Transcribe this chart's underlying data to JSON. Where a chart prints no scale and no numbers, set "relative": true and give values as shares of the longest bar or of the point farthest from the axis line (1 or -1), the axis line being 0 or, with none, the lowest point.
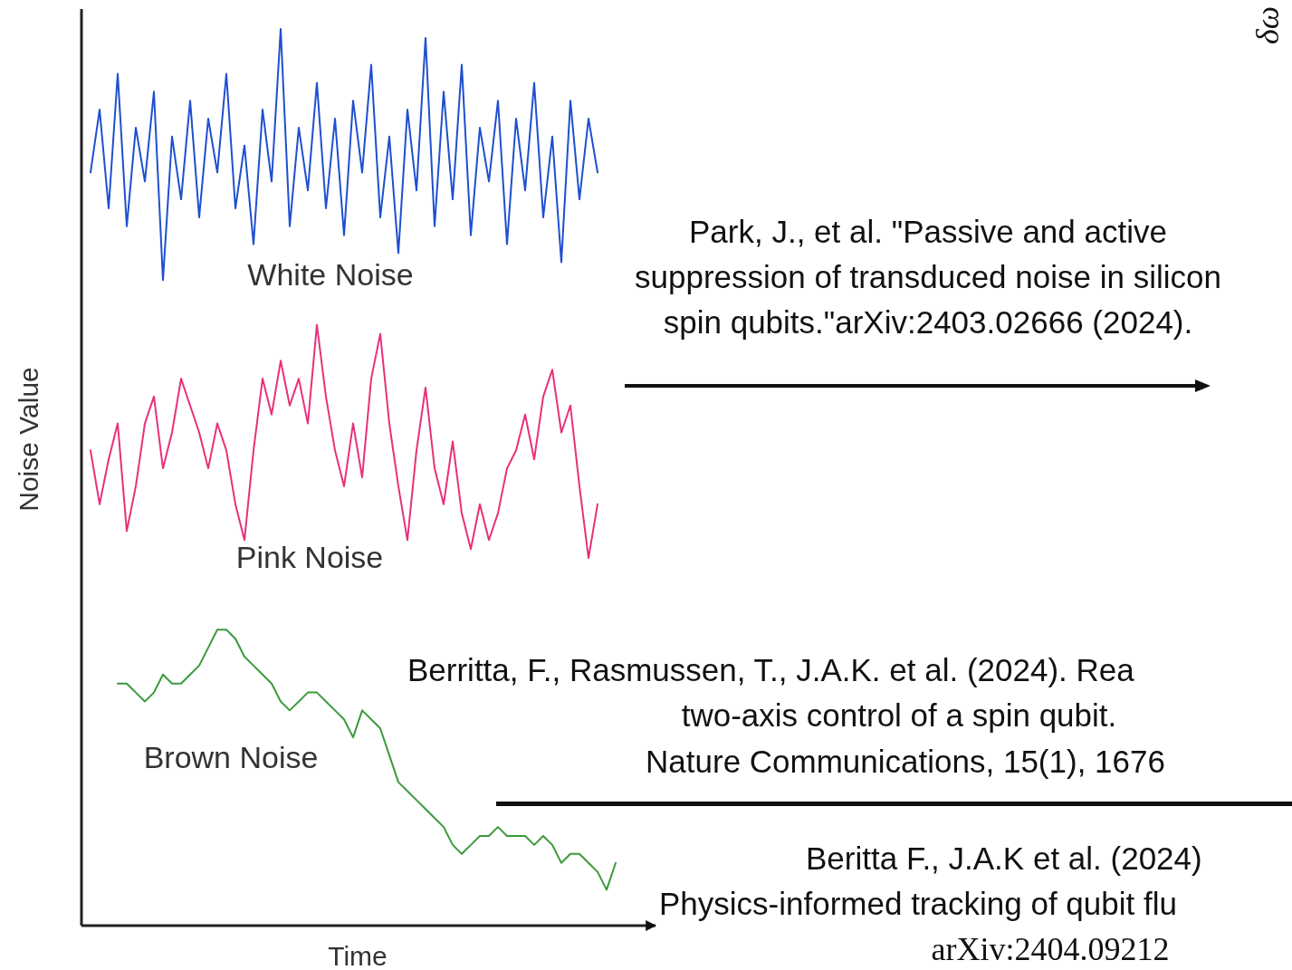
{
  "chart_data": {
    "type": "line",
    "relative": true,
    "xlabel": "Time",
    "ylabel": "Noise Value",
    "categories": [
      null,
      null,
      null,
      null,
      null,
      null,
      null,
      null,
      null,
      null,
      null,
      null,
      null,
      null,
      null,
      null,
      null,
      null,
      null,
      null,
      null,
      null,
      null,
      null,
      null,
      null,
      null,
      null,
      null,
      null,
      null,
      null,
      null,
      null,
      null,
      null,
      null,
      null,
      null,
      null,
      null,
      null,
      null,
      null,
      null,
      null,
      null,
      null,
      null,
      null,
      null,
      null,
      null,
      null,
      null,
      null,
      null,
      null,
      null
    ],
    "series": [
      {
        "name": "White Noise",
        "color": "#1f4fd0",
        "values": [
          0.84,
          0.91,
          0.8,
          0.95,
          0.78,
          0.89,
          0.83,
          0.93,
          0.72,
          0.88,
          0.81,
          0.92,
          0.79,
          0.9,
          0.84,
          0.95,
          0.8,
          0.87,
          0.76,
          0.91,
          0.83,
          1.0,
          0.78,
          0.89,
          0.82,
          0.94,
          0.8,
          0.9,
          0.77,
          0.92,
          0.84,
          0.96,
          0.79,
          0.88,
          0.75,
          0.91,
          0.82,
          0.99,
          0.78,
          0.93,
          0.81,
          0.96,
          0.77,
          0.89,
          0.83,
          0.92,
          0.76,
          0.9,
          0.82,
          0.94,
          0.79,
          0.88,
          0.74,
          0.92,
          0.81,
          0.9,
          0.84,
          null,
          null
        ]
      },
      {
        "name": "Pink Noise",
        "color": "#e8307a",
        "values": [
          0.53,
          0.47,
          0.52,
          0.56,
          0.44,
          0.49,
          0.56,
          0.59,
          0.51,
          0.55,
          0.61,
          0.58,
          0.55,
          0.51,
          0.56,
          0.53,
          0.47,
          0.43,
          0.53,
          0.61,
          0.57,
          0.63,
          0.58,
          0.61,
          0.56,
          0.67,
          0.59,
          0.53,
          0.49,
          0.56,
          0.5,
          0.61,
          0.66,
          0.56,
          0.49,
          0.43,
          0.53,
          0.6,
          0.51,
          0.47,
          0.54,
          0.46,
          0.42,
          0.47,
          0.43,
          0.46,
          0.51,
          0.53,
          0.57,
          0.52,
          0.59,
          0.62,
          0.55,
          0.58,
          0.49,
          0.41,
          0.47,
          null,
          null
        ]
      },
      {
        "name": "Brown Noise",
        "color": "#3a9a3a",
        "values": [
          null,
          null,
          null,
          0.27,
          0.27,
          0.26,
          0.25,
          0.26,
          0.28,
          0.27,
          0.27,
          0.28,
          0.29,
          0.31,
          0.33,
          0.33,
          0.32,
          0.3,
          0.29,
          0.28,
          0.27,
          0.25,
          0.24,
          0.25,
          0.26,
          0.26,
          0.25,
          0.24,
          0.23,
          0.21,
          0.24,
          0.23,
          0.22,
          0.19,
          0.16,
          0.15,
          0.14,
          0.13,
          0.12,
          0.11,
          0.09,
          0.08,
          0.09,
          0.1,
          0.1,
          0.11,
          0.1,
          0.1,
          0.1,
          0.09,
          0.1,
          0.09,
          0.07,
          0.08,
          0.08,
          0.07,
          0.06,
          0.04,
          0.07
        ]
      }
    ],
    "annotations": [
      "Park, J., et al. \"Passive and active",
      "suppression of transduced noise in silicon",
      "spin qubits.\"arXiv:2403.02666 (2024).",
      "Berritta, F., Rasmussen, T., J.A.K. et al. (2024). Rea",
      "two-axis control of a spin qubit.",
      "Nature Communications, 15(1), 1676",
      "Beritta F., J.A.K et al. (2024)",
      "Physics-informed tracking of qubit flu",
      "arXiv:2404.09212",
      "δω"
    ]
  }
}
